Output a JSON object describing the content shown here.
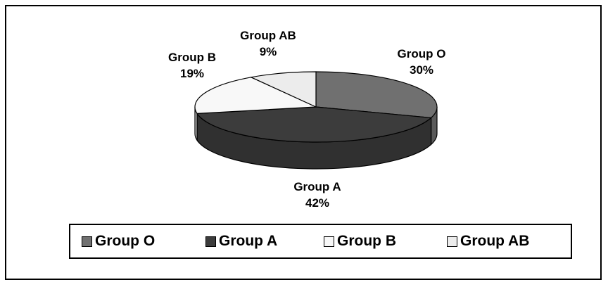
{
  "chart_data": {
    "type": "pie",
    "three_d": true,
    "legend_position": "bottom",
    "slices": [
      {
        "name": "Group O",
        "value": 30,
        "label": "30%",
        "color": "#707070"
      },
      {
        "name": "Group A",
        "value": 42,
        "label": "42%",
        "color": "#3c3c3c"
      },
      {
        "name": "Group B",
        "value": 19,
        "label": "19%",
        "color": "#f8f8f8"
      },
      {
        "name": "Group AB",
        "value": 9,
        "label": "9%",
        "color": "#ececec"
      }
    ]
  }
}
